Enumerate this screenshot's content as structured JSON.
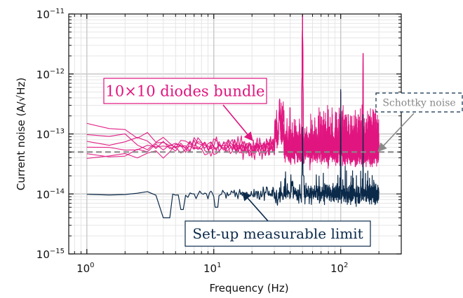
{
  "chart_data": {
    "type": "line",
    "xscale": "log",
    "yscale": "log",
    "xlim": [
      0.72,
      300
    ],
    "ylim": [
      1e-15,
      1e-11
    ],
    "grid": true,
    "xlabel": "Frequency (Hz)",
    "ylabel": "Current noise (A/√Hz)",
    "x_ticks": [
      {
        "base": "10",
        "exp": "0"
      },
      {
        "base": "10",
        "exp": "1"
      },
      {
        "base": "10",
        "exp": "2"
      }
    ],
    "y_ticks": [
      {
        "base": "10",
        "exp": "−15"
      },
      {
        "base": "10",
        "exp": "−14"
      },
      {
        "base": "10",
        "exp": "−13"
      },
      {
        "base": "10",
        "exp": "−12"
      },
      {
        "base": "10",
        "exp": "−11"
      }
    ],
    "series": [
      {
        "name": "10×10 diodes bundle",
        "color": "#e0157f",
        "traces": 6,
        "x_range": [
          1,
          200
        ],
        "baseline": 6e-14,
        "low_freq_levels": [
          1.25e-13,
          1.05e-13,
          8e-14,
          6.5e-14,
          5e-14,
          4.2e-14
        ],
        "peaks": [
          {
            "x": 33,
            "y": 3.8e-13
          },
          {
            "x": 50,
            "y": 1e-11
          },
          {
            "x": 100,
            "y": 5e-13
          },
          {
            "x": 150,
            "y": 2.2e-12
          },
          {
            "x": 180,
            "y": 2.5e-13
          }
        ]
      },
      {
        "name": "Set-up measurable limit",
        "color": "#0b2a4a",
        "traces": 1,
        "x_range": [
          1,
          200
        ],
        "baseline": 1e-14,
        "dips": [
          {
            "x": 4.3,
            "y": 4e-15
          },
          {
            "x": 5.6,
            "y": 5.5e-15
          },
          {
            "x": 10.5,
            "y": 6e-15
          }
        ],
        "peaks": [
          {
            "x": 50,
            "y": 1.3e-13
          },
          {
            "x": 100,
            "y": 5.5e-13
          },
          {
            "x": 150,
            "y": 2.1e-13
          }
        ]
      },
      {
        "name": "Schottky noise",
        "color": "#888888",
        "style": "dashed",
        "constant": 5e-14
      }
    ],
    "annotations": [
      {
        "text": "10×10 diodes bundle",
        "color": "#e0157f",
        "box": "#e0157f",
        "box_style": "solid",
        "arrow_to": {
          "x": 20,
          "y": 8e-14
        }
      },
      {
        "text": "Set-up measurable limit",
        "color": "#0b2a4a",
        "box": "#0b2a4a",
        "box_style": "solid",
        "arrow_to": {
          "x": 17,
          "y": 1.1e-14
        }
      },
      {
        "text": "Schottky noise",
        "color": "#888888",
        "box": "#0b2a4a",
        "box_style": "dashed",
        "arrow_to": {
          "x": 205,
          "y": 5e-14
        }
      }
    ]
  }
}
